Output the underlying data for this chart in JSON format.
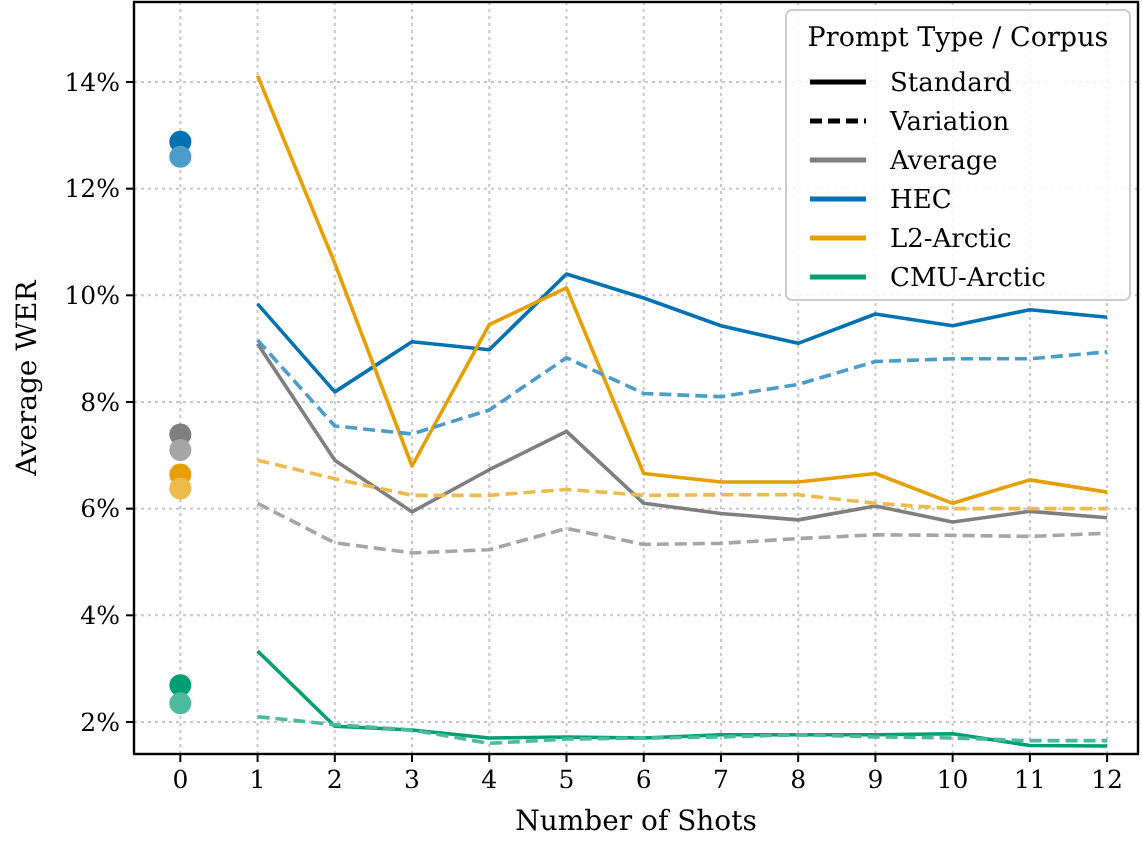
{
  "chart_data": {
    "type": "line",
    "xlabel": "Number of Shots",
    "ylabel": "Average WER",
    "legend_title": "Prompt Type / Corpus",
    "legend": "top right",
    "grid": true,
    "xlim": [
      -0.6,
      12.4
    ],
    "xticks": [
      0,
      1,
      2,
      3,
      4,
      5,
      6,
      7,
      8,
      9,
      10,
      11,
      12
    ],
    "ylim": [
      1.4,
      15.5
    ],
    "yticks": [
      {
        "value": 2,
        "label": "2%"
      },
      {
        "value": 4,
        "label": "4%"
      },
      {
        "value": 6,
        "label": "6%"
      },
      {
        "value": 8,
        "label": "8%"
      },
      {
        "value": 10,
        "label": "10%"
      },
      {
        "value": 12,
        "label": "12%"
      },
      {
        "value": 14,
        "label": "14%"
      }
    ],
    "series": [
      {
        "name": "Standard",
        "color": "#000000",
        "line_style": "solid"
      },
      {
        "name": "Variation",
        "color": "#000000",
        "line_style": "dashed"
      },
      {
        "name": "Average",
        "color": "#7f7f7f",
        "line_style": "solid",
        "x": [
          1,
          2,
          3,
          4,
          5,
          6,
          7,
          8,
          9,
          10,
          11,
          12
        ],
        "values": [
          9.09,
          6.91,
          5.94,
          6.73,
          7.45,
          6.1,
          5.91,
          5.79,
          6.05,
          5.75,
          5.95,
          5.83
        ]
      },
      {
        "name": "HEC",
        "color": "#0072b2",
        "line_style": "solid",
        "x": [
          1,
          2,
          3,
          4,
          5,
          6,
          7,
          8,
          9,
          10,
          11,
          12
        ],
        "values": [
          9.84,
          8.19,
          9.13,
          8.98,
          10.4,
          9.95,
          9.43,
          9.1,
          9.65,
          9.43,
          9.73,
          9.59
        ]
      },
      {
        "name": "L2-Arctic",
        "color": "#e69f00",
        "line_style": "solid",
        "x": [
          1,
          2,
          3,
          4,
          5,
          6,
          7,
          8,
          9,
          10,
          11,
          12
        ],
        "values": [
          14.12,
          10.6,
          6.8,
          9.45,
          10.14,
          6.66,
          6.5,
          6.5,
          6.66,
          6.1,
          6.54,
          6.31
        ]
      },
      {
        "name": "CMU-Arctic",
        "color": "#009e73",
        "line_style": "solid",
        "x": [
          1,
          2,
          3,
          4,
          5,
          6,
          7,
          8,
          9,
          10,
          11,
          12
        ],
        "values": [
          3.33,
          1.92,
          1.85,
          1.7,
          1.72,
          1.7,
          1.76,
          1.76,
          1.76,
          1.78,
          1.56,
          1.55
        ]
      },
      {
        "color": "#a5a5a5",
        "line_style": "dashed",
        "x": [
          1,
          2,
          3,
          4,
          5,
          6,
          7,
          8,
          9,
          10,
          11,
          12
        ],
        "values": [
          6.1,
          5.36,
          5.17,
          5.23,
          5.63,
          5.33,
          5.35,
          5.44,
          5.51,
          5.5,
          5.48,
          5.54
        ]
      },
      {
        "color": "#4c9cc9",
        "line_style": "dashed",
        "x": [
          1,
          2,
          3,
          4,
          5,
          6,
          7,
          8,
          9,
          10,
          11,
          12
        ],
        "values": [
          9.16,
          7.55,
          7.4,
          7.85,
          8.83,
          8.16,
          8.1,
          8.33,
          8.76,
          8.81,
          8.81,
          8.94
        ]
      },
      {
        "color": "#ecbb4c",
        "line_style": "dashed",
        "x": [
          1,
          2,
          3,
          4,
          5,
          6,
          7,
          8,
          9,
          10,
          11,
          12
        ],
        "values": [
          6.91,
          6.56,
          6.25,
          6.25,
          6.36,
          6.25,
          6.26,
          6.26,
          6.1,
          6.0,
          6.0,
          6.0
        ]
      },
      {
        "color": "#4cbb9d",
        "line_style": "dashed",
        "x": [
          1,
          2,
          3,
          4,
          5,
          6,
          7,
          8,
          9,
          10,
          11,
          12
        ],
        "values": [
          2.1,
          1.95,
          1.85,
          1.6,
          1.68,
          1.7,
          1.72,
          1.76,
          1.72,
          1.7,
          1.65,
          1.65
        ]
      },
      {
        "type": "scatter",
        "marker": "circle",
        "x": [
          0,
          0,
          0,
          0,
          0,
          0,
          0,
          0
        ],
        "values": [
          12.88,
          12.6,
          7.39,
          7.1,
          6.64,
          6.38,
          2.69,
          2.35
        ],
        "colors": [
          "#0072b2",
          "#4c9cc9",
          "#7f7f7f",
          "#a5a5a5",
          "#e69f00",
          "#ecbb4c",
          "#009e73",
          "#4cbb9d"
        ]
      }
    ]
  }
}
